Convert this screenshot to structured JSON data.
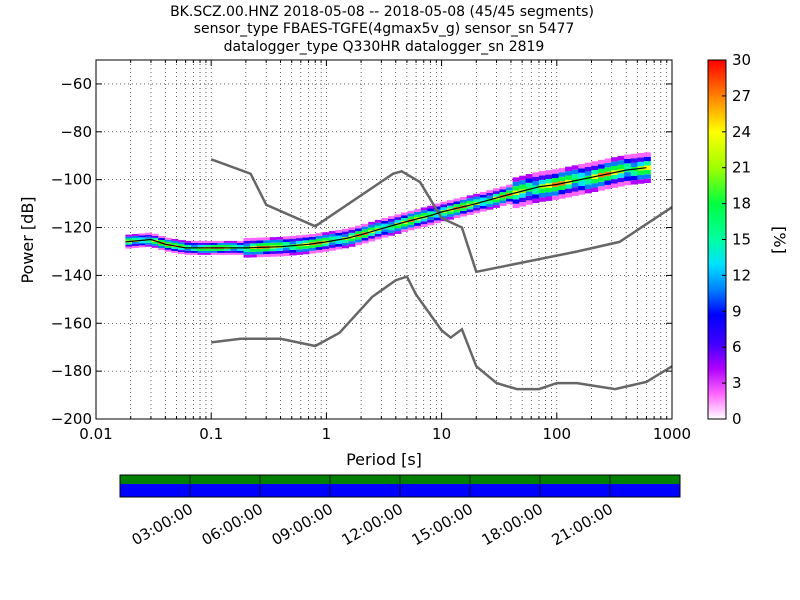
{
  "chart_data": {
    "type": "heatmap",
    "title_lines": [
      "BK.SCZ.00.HNZ   2018-05-08 -- 2018-05-08  (45/45 segments)",
      "sensor_type FBAES-TGFE(4gmax5v_g) sensor_sn 5477",
      "datalogger_type Q330HR datalogger_sn 2819"
    ],
    "xlabel": "Period [s]",
    "ylabel": "Power [dB]",
    "xscale": "log",
    "xlim": [
      0.01,
      1000
    ],
    "ylim": [
      -200,
      -50
    ],
    "x_ticks": [
      {
        "value": 0.01,
        "label": "0.01"
      },
      {
        "value": 0.1,
        "label": "0.1"
      },
      {
        "value": 1,
        "label": "1"
      },
      {
        "value": 10,
        "label": "10"
      },
      {
        "value": 100,
        "label": "100"
      },
      {
        "value": 1000,
        "label": "1000"
      }
    ],
    "y_ticks": [
      {
        "value": -60,
        "label": "−60"
      },
      {
        "value": -80,
        "label": "−80"
      },
      {
        "value": -100,
        "label": "−100"
      },
      {
        "value": -120,
        "label": "−120"
      },
      {
        "value": -140,
        "label": "−140"
      },
      {
        "value": -160,
        "label": "−160"
      },
      {
        "value": -180,
        "label": "−180"
      },
      {
        "value": -200,
        "label": "−200"
      }
    ],
    "grid": true,
    "colorbar": {
      "label": "[%]",
      "range": [
        0,
        30
      ],
      "ticks": [
        {
          "value": 0,
          "label": "0"
        },
        {
          "value": 3,
          "label": "3"
        },
        {
          "value": 6,
          "label": "6"
        },
        {
          "value": 9,
          "label": "9"
        },
        {
          "value": 12,
          "label": "12"
        },
        {
          "value": 15,
          "label": "15"
        },
        {
          "value": 18,
          "label": "18"
        },
        {
          "value": 21,
          "label": "21"
        },
        {
          "value": 24,
          "label": "24"
        },
        {
          "value": 27,
          "label": "27"
        },
        {
          "value": 30,
          "label": "30"
        }
      ]
    },
    "mean_curve": [
      [
        0.018,
        -126
      ],
      [
        0.03,
        -125
      ],
      [
        0.04,
        -127
      ],
      [
        0.06,
        -128.5
      ],
      [
        0.1,
        -128.5
      ],
      [
        0.2,
        -128.5
      ],
      [
        0.4,
        -128
      ],
      [
        0.7,
        -127
      ],
      [
        1,
        -126
      ],
      [
        1.5,
        -124.5
      ],
      [
        2,
        -123
      ],
      [
        3,
        -120.5
      ],
      [
        5,
        -117.5
      ],
      [
        8,
        -115
      ],
      [
        10,
        -113.5
      ],
      [
        20,
        -110
      ],
      [
        40,
        -106
      ],
      [
        70,
        -103
      ],
      [
        100,
        -102
      ],
      [
        200,
        -99
      ],
      [
        400,
        -96
      ],
      [
        600,
        -95
      ]
    ],
    "reference_lines": [
      {
        "points": [
          [
            0.1,
            -91.5
          ],
          [
            0.22,
            -97.5
          ],
          [
            0.3,
            -110.5
          ],
          [
            0.8,
            -119.5
          ],
          [
            3.8,
            -97.5
          ],
          [
            4.5,
            -96.5
          ],
          [
            6.5,
            -101
          ],
          [
            10,
            -116
          ],
          [
            15,
            -120
          ],
          [
            20,
            -138.5
          ],
          [
            150,
            -130
          ],
          [
            350,
            -126
          ],
          [
            1000,
            -111.5
          ]
        ]
      },
      {
        "points": [
          [
            0.1,
            -168
          ],
          [
            0.18,
            -166.5
          ],
          [
            0.4,
            -166.5
          ],
          [
            0.8,
            -169.5
          ],
          [
            1.3,
            -164
          ],
          [
            2.5,
            -149
          ],
          [
            4,
            -142
          ],
          [
            5,
            -140.5
          ],
          [
            6,
            -148
          ],
          [
            10,
            -163
          ],
          [
            12,
            -166
          ],
          [
            15,
            -162.5
          ],
          [
            20,
            -178
          ],
          [
            30,
            -185
          ],
          [
            45,
            -187.5
          ],
          [
            70,
            -187.5
          ],
          [
            100,
            -185
          ],
          [
            150,
            -185
          ],
          [
            320,
            -187.5
          ],
          [
            600,
            -184.5
          ],
          [
            1000,
            -178
          ]
        ]
      }
    ],
    "time_axis": {
      "labels": [
        "03:00:00",
        "06:00:00",
        "09:00:00",
        "12:00:00",
        "15:00:00",
        "18:00:00",
        "21:00:00"
      ],
      "hours": [
        3,
        6,
        9,
        12,
        15,
        18,
        21
      ],
      "span_hours": 24,
      "data_availability_color": "#008000",
      "gaps_color": "#0000ff"
    }
  }
}
